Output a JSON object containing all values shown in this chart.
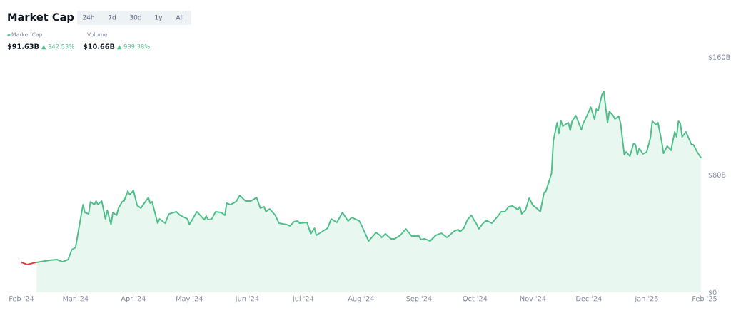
{
  "chart_data": {
    "type": "area",
    "title": "Market Cap",
    "annotations": [
      "24h",
      "7d",
      "30d",
      "1y",
      "All",
      "Market Cap",
      "$91.63B",
      "▲ 342.53%",
      "Volume",
      "$10.66B",
      "▲ 939.38%"
    ],
    "series": [
      {
        "type": "line",
        "color": "#ea3943",
        "x": [
          "2024-02-01",
          "2024-02-04",
          "2024-02-09"
        ],
        "values": [
          20.4,
          18.9,
          20.4
        ]
      },
      {
        "color": "#4fbf8a",
        "x": [
          "2024-02-09",
          "2024-02-16",
          "2024-02-20",
          "2024-02-23",
          "2024-02-26",
          "2024-02-28",
          "2024-03-01",
          "2024-03-03",
          "2024-03-05",
          "2024-03-06",
          "2024-03-08",
          "2024-03-09",
          "2024-03-11",
          "2024-03-12",
          "2024-03-13",
          "2024-03-15",
          "2024-03-17",
          "2024-03-18",
          "2024-03-20",
          "2024-03-21",
          "2024-03-23",
          "2024-03-24",
          "2024-03-26",
          "2024-03-27",
          "2024-03-29",
          "2024-03-30",
          "2024-04-01",
          "2024-04-03",
          "2024-04-05",
          "2024-04-06",
          "2024-04-09",
          "2024-04-10",
          "2024-04-11",
          "2024-04-14",
          "2024-04-15",
          "2024-04-18",
          "2024-04-20",
          "2024-04-24",
          "2024-04-26",
          "2024-04-30",
          "2024-05-01",
          "2024-05-05",
          "2024-05-09",
          "2024-05-10",
          "2024-05-11",
          "2024-05-13",
          "2024-05-15",
          "2024-05-18",
          "2024-05-20",
          "2024-05-21",
          "2024-05-23",
          "2024-05-26",
          "2024-05-28",
          "2024-05-31",
          "2024-06-03",
          "2024-06-06",
          "2024-06-08",
          "2024-06-10",
          "2024-06-11",
          "2024-06-13",
          "2024-06-16",
          "2024-06-18",
          "2024-06-22",
          "2024-06-24",
          "2024-06-26",
          "2024-06-28",
          "2024-06-29",
          "2024-07-03",
          "2024-07-05",
          "2024-07-07",
          "2024-07-08",
          "2024-07-11",
          "2024-07-14",
          "2024-07-16",
          "2024-07-19",
          "2024-07-22",
          "2024-07-25",
          "2024-07-27",
          "2024-07-31",
          "2024-08-01",
          "2024-08-05",
          "2024-08-09",
          "2024-08-11",
          "2024-08-12",
          "2024-08-14",
          "2024-08-17",
          "2024-08-19",
          "2024-08-22",
          "2024-08-25",
          "2024-08-28",
          "2024-09-01",
          "2024-09-02",
          "2024-09-04",
          "2024-09-07",
          "2024-09-10",
          "2024-09-13",
          "2024-09-16",
          "2024-09-20",
          "2024-09-22",
          "2024-09-23",
          "2024-09-25",
          "2024-09-27",
          "2024-09-29",
          "2024-10-02",
          "2024-10-03",
          "2024-10-05",
          "2024-10-07",
          "2024-10-10",
          "2024-10-13",
          "2024-10-15",
          "2024-10-17",
          "2024-10-19",
          "2024-10-21",
          "2024-10-24",
          "2024-10-25",
          "2024-10-26",
          "2024-10-28",
          "2024-10-30",
          "2024-11-01",
          "2024-11-03",
          "2024-11-05",
          "2024-11-07",
          "2024-11-08",
          "2024-11-11",
          "2024-11-12",
          "2024-11-14",
          "2024-11-15",
          "2024-11-16",
          "2024-11-17",
          "2024-11-20",
          "2024-11-21",
          "2024-11-22",
          "2024-11-24",
          "2024-11-27",
          "2024-11-28",
          "2024-11-30",
          "2024-12-02",
          "2024-12-04",
          "2024-12-05",
          "2024-12-06",
          "2024-12-08",
          "2024-12-09",
          "2024-12-11",
          "2024-12-12",
          "2024-12-14",
          "2024-12-15",
          "2024-12-17",
          "2024-12-18",
          "2024-12-20",
          "2024-12-21",
          "2024-12-23",
          "2024-12-25",
          "2024-12-26",
          "2024-12-27",
          "2024-12-28",
          "2024-12-30",
          "2025-01-01",
          "2025-01-03",
          "2025-01-04",
          "2025-01-06",
          "2025-01-07",
          "2025-01-09",
          "2025-01-10",
          "2025-01-12",
          "2025-01-14",
          "2025-01-16",
          "2025-01-17",
          "2025-01-18",
          "2025-01-19",
          "2025-01-20",
          "2025-01-22",
          "2025-01-25",
          "2025-01-26",
          "2025-01-28",
          "2025-01-30"
        ],
        "values": [
          20.4,
          21.8,
          22.3,
          20.8,
          22.3,
          29.1,
          30.5,
          45.1,
          59.6,
          54.3,
          53.3,
          61.6,
          59.6,
          62.1,
          59.6,
          62.1,
          49.9,
          55.8,
          46.1,
          54.3,
          52.4,
          57.2,
          61.6,
          62.1,
          68.8,
          66.4,
          69.3,
          59.1,
          57.2,
          59.1,
          64.5,
          60.6,
          61.6,
          47.0,
          49.9,
          47.0,
          53.3,
          54.8,
          52.4,
          49.9,
          46.1,
          54.8,
          49.4,
          51.9,
          49.4,
          49.9,
          54.8,
          54.3,
          52.4,
          60.6,
          59.6,
          61.6,
          65.9,
          62.1,
          62.1,
          64.5,
          57.2,
          58.2,
          54.8,
          56.7,
          52.4,
          47.0,
          46.1,
          45.1,
          48.0,
          48.5,
          47.0,
          47.5,
          39.8,
          43.6,
          38.8,
          41.2,
          43.6,
          49.9,
          47.5,
          54.3,
          48.5,
          50.9,
          48.5,
          46.1,
          34.9,
          40.7,
          38.8,
          37.3,
          39.8,
          36.4,
          36.4,
          38.8,
          43.1,
          38.3,
          38.3,
          35.9,
          36.4,
          34.9,
          38.8,
          40.2,
          37.3,
          41.7,
          42.7,
          41.2,
          43.6,
          49.4,
          52.4,
          46.1,
          43.1,
          46.5,
          49.0,
          47.0,
          51.4,
          54.8,
          54.8,
          58.2,
          58.7,
          56.2,
          58.2,
          53.3,
          55.8,
          64.0,
          59.1,
          57.2,
          54.8,
          67.9,
          68.8,
          81.0,
          103.3,
          115.4,
          108.1,
          116.8,
          113.0,
          115.4,
          110.0,
          116.4,
          120.2,
          110.5,
          114.9,
          120.2,
          126.0,
          117.8,
          124.6,
          123.6,
          134.3,
          136.7,
          115.4,
          123.1,
          120.2,
          117.8,
          119.7,
          114.9,
          93.6,
          95.5,
          92.6,
          101.3,
          100.4,
          93.6,
          97.9,
          94.1,
          95.5,
          105.2,
          116.4,
          113.9,
          115.4,
          102.8,
          94.5,
          99.4,
          96.5,
          109.1,
          105.7,
          116.4,
          114.9,
          105.7,
          109.1,
          100.4,
          100.4,
          95.5,
          91.6
        ]
      }
    ],
    "xlim": [
      "2024-02-01",
      "2025-02-01"
    ],
    "xticks": [
      {
        "value": "2024-02-01",
        "label": "Feb '24"
      },
      {
        "value": "2024-03-01",
        "label": "Mar '24"
      },
      {
        "value": "2024-04-01",
        "label": "Apr '24"
      },
      {
        "value": "2024-05-01",
        "label": "May '24"
      },
      {
        "value": "2024-06-01",
        "label": "Jun '24"
      },
      {
        "value": "2024-07-01",
        "label": "Jul '24"
      },
      {
        "value": "2024-08-01",
        "label": "Aug '24"
      },
      {
        "value": "2024-09-01",
        "label": "Sep '24"
      },
      {
        "value": "2024-10-01",
        "label": "Oct '24"
      },
      {
        "value": "2024-11-01",
        "label": "Nov '24"
      },
      {
        "value": "2024-12-01",
        "label": "Dec '24"
      },
      {
        "value": "2025-01-01",
        "label": "Jan '25"
      },
      {
        "value": "2025-02-01",
        "label": "Feb '25"
      }
    ],
    "ylim": [
      0,
      160
    ],
    "yticks": [
      {
        "value": 0,
        "label": "$0"
      },
      {
        "value": 80,
        "label": "$80B"
      },
      {
        "value": 160,
        "label": "$160B"
      }
    ],
    "grid": false,
    "legend": false
  }
}
